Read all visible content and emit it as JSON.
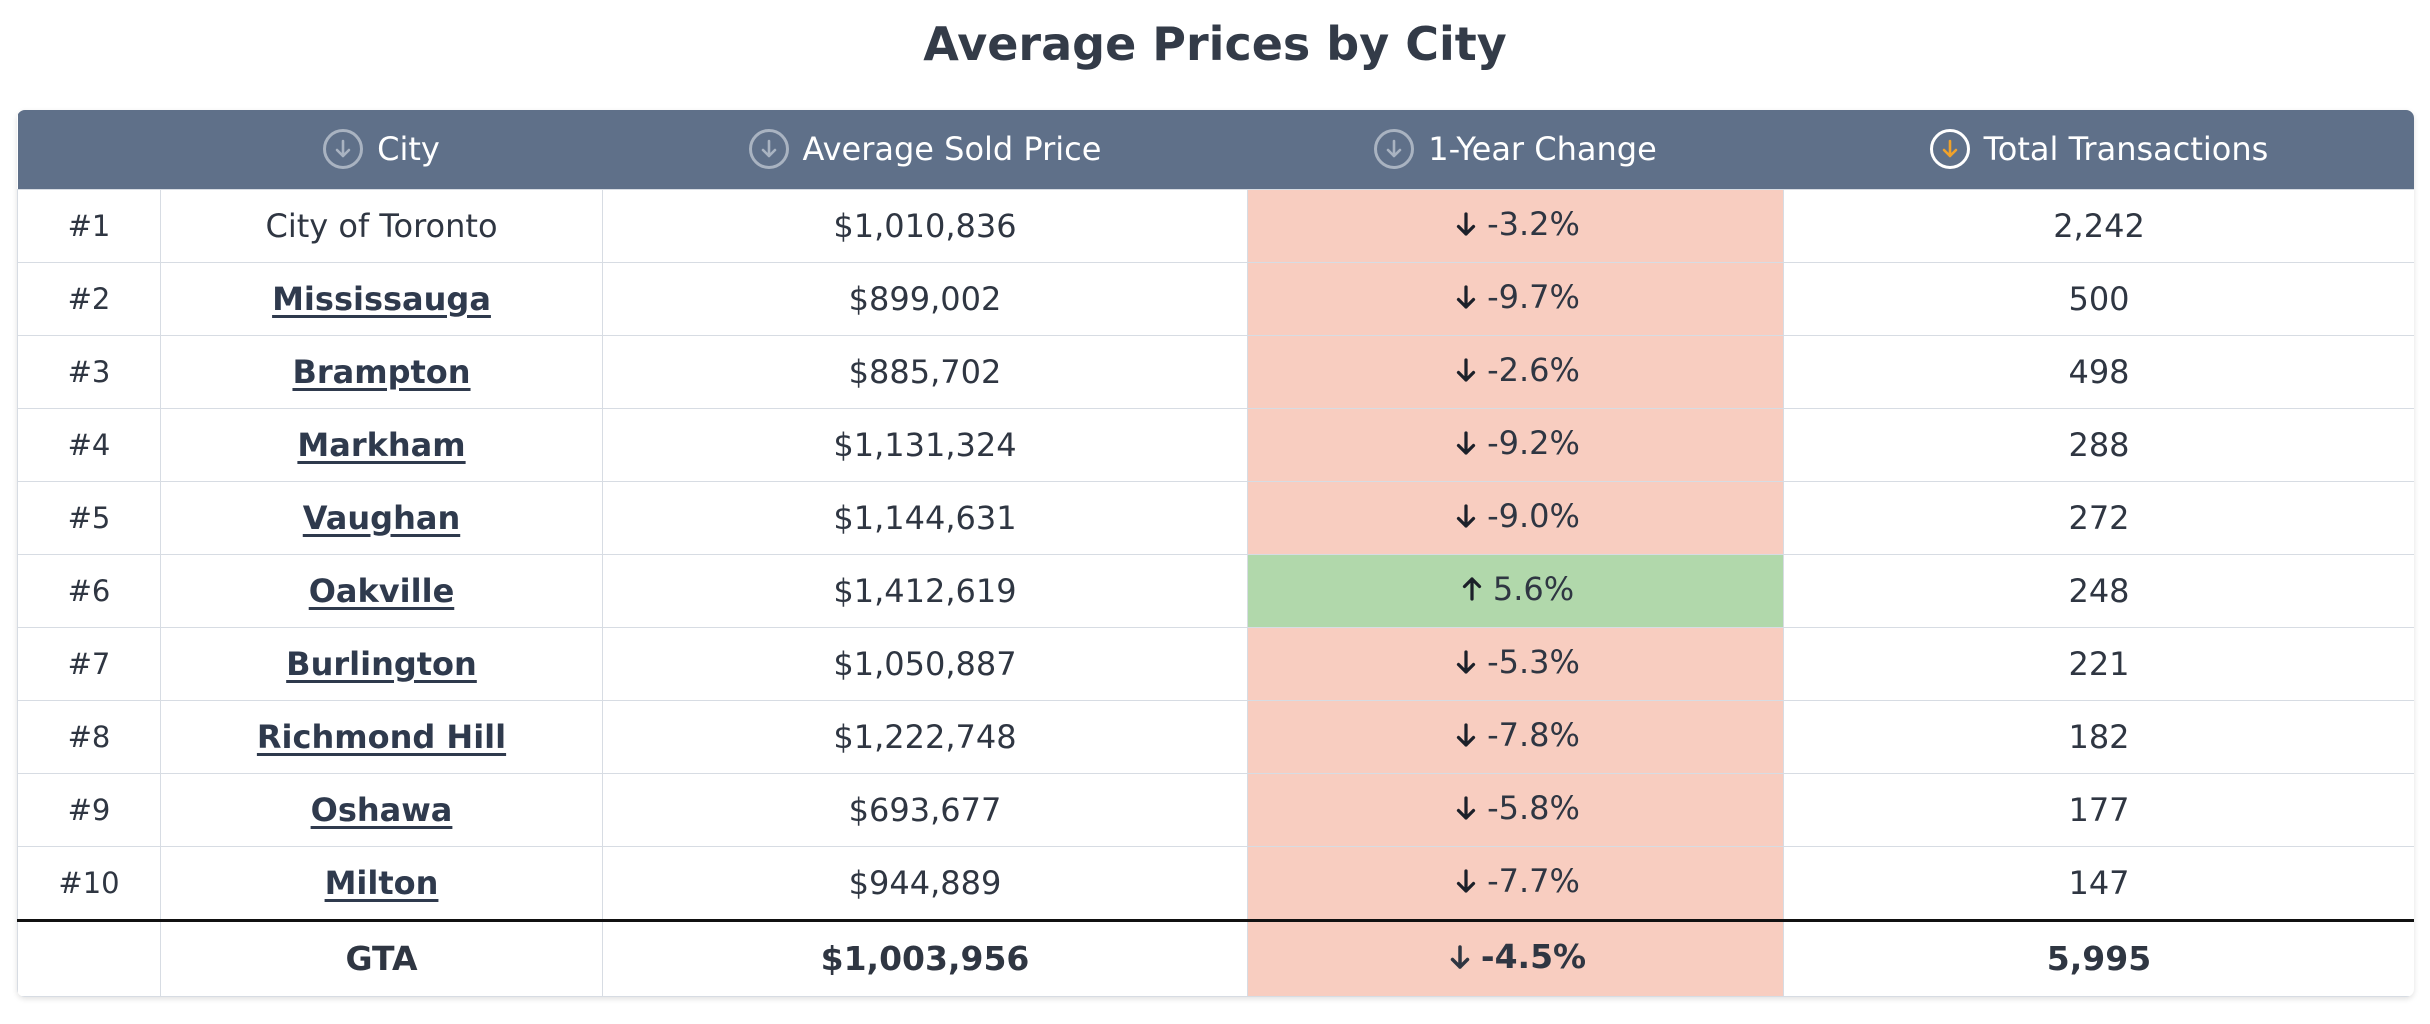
{
  "title": "Average Prices by City",
  "headers": {
    "rank": "",
    "city": "City",
    "price": "Average Sold Price",
    "change": "1-Year Change",
    "transactions": "Total Transactions"
  },
  "colors": {
    "header_bg": "#5f7089",
    "negative_bg": "#f8cdc0",
    "positive_bg": "#b1d8ab",
    "active_sort": "#f0a22b"
  },
  "sort": {
    "column": "transactions",
    "direction": "descending"
  },
  "rows": [
    {
      "rank": "#1",
      "city": "City of Toronto",
      "price": "$1,010,836",
      "change": "-3.2%",
      "direction": "down",
      "transactions": "2,242",
      "link": false
    },
    {
      "rank": "#2",
      "city": "Mississauga",
      "price": "$899,002",
      "change": "-9.7%",
      "direction": "down",
      "transactions": "500",
      "link": true
    },
    {
      "rank": "#3",
      "city": "Brampton",
      "price": "$885,702",
      "change": "-2.6%",
      "direction": "down",
      "transactions": "498",
      "link": true
    },
    {
      "rank": "#4",
      "city": "Markham",
      "price": "$1,131,324",
      "change": "-9.2%",
      "direction": "down",
      "transactions": "288",
      "link": true
    },
    {
      "rank": "#5",
      "city": "Vaughan",
      "price": "$1,144,631",
      "change": "-9.0%",
      "direction": "down",
      "transactions": "272",
      "link": true
    },
    {
      "rank": "#6",
      "city": "Oakville",
      "price": "$1,412,619",
      "change": "5.6%",
      "direction": "up",
      "transactions": "248",
      "link": true
    },
    {
      "rank": "#7",
      "city": "Burlington",
      "price": "$1,050,887",
      "change": "-5.3%",
      "direction": "down",
      "transactions": "221",
      "link": true
    },
    {
      "rank": "#8",
      "city": "Richmond Hill",
      "price": "$1,222,748",
      "change": "-7.8%",
      "direction": "down",
      "transactions": "182",
      "link": true
    },
    {
      "rank": "#9",
      "city": "Oshawa",
      "price": "$693,677",
      "change": "-5.8%",
      "direction": "down",
      "transactions": "177",
      "link": true
    },
    {
      "rank": "#10",
      "city": "Milton",
      "price": "$944,889",
      "change": "-7.7%",
      "direction": "down",
      "transactions": "147",
      "link": true
    }
  ],
  "total": {
    "rank": "",
    "city": "GTA",
    "price": "$1,003,956",
    "change": "-4.5%",
    "direction": "down",
    "transactions": "5,995"
  }
}
